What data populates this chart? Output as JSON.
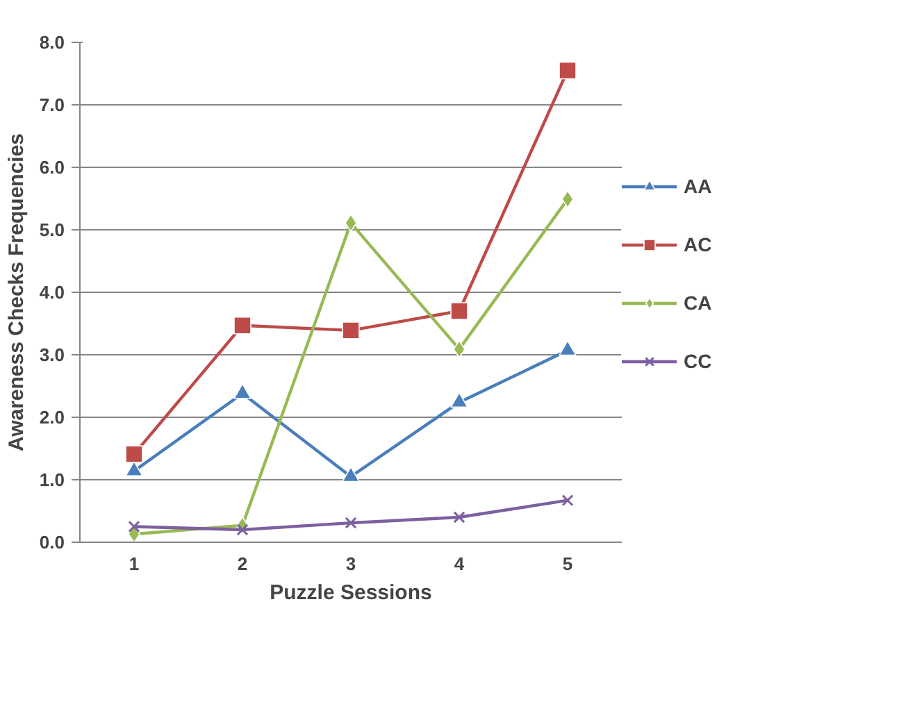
{
  "chart_data": {
    "type": "line",
    "xlabel": "Puzzle Sessions",
    "ylabel": "Awareness Checks Frequencies",
    "categories": [
      "1",
      "2",
      "3",
      "4",
      "5"
    ],
    "ylim": [
      0,
      8
    ],
    "yticks": [
      {
        "value": 0,
        "label": "0.0"
      },
      {
        "value": 1,
        "label": "1.0"
      },
      {
        "value": 2,
        "label": "2.0"
      },
      {
        "value": 3,
        "label": "3.0"
      },
      {
        "value": 4,
        "label": "4.0"
      },
      {
        "value": 5,
        "label": "5.0"
      },
      {
        "value": 6,
        "label": "6.0"
      },
      {
        "value": 7,
        "label": "7.0"
      },
      {
        "value": 8,
        "label": "8.0"
      }
    ],
    "grid": "y",
    "legend": "right",
    "line_style": "solid",
    "series": [
      {
        "name": "AA",
        "color": "#4a7ebb",
        "marker": "triangle",
        "values": [
          1.14,
          2.38,
          1.05,
          2.24,
          3.07
        ]
      },
      {
        "name": "AC",
        "color": "#be4b48",
        "marker": "square",
        "values": [
          1.41,
          3.47,
          3.39,
          3.7,
          7.55
        ]
      },
      {
        "name": "CA",
        "color": "#98b954",
        "marker": "diamond",
        "values": [
          0.13,
          0.27,
          5.11,
          3.09,
          5.49
        ]
      },
      {
        "name": "CC",
        "color": "#7d60a0",
        "marker": "cross",
        "values": [
          0.25,
          0.2,
          0.31,
          0.4,
          0.67
        ]
      }
    ]
  }
}
